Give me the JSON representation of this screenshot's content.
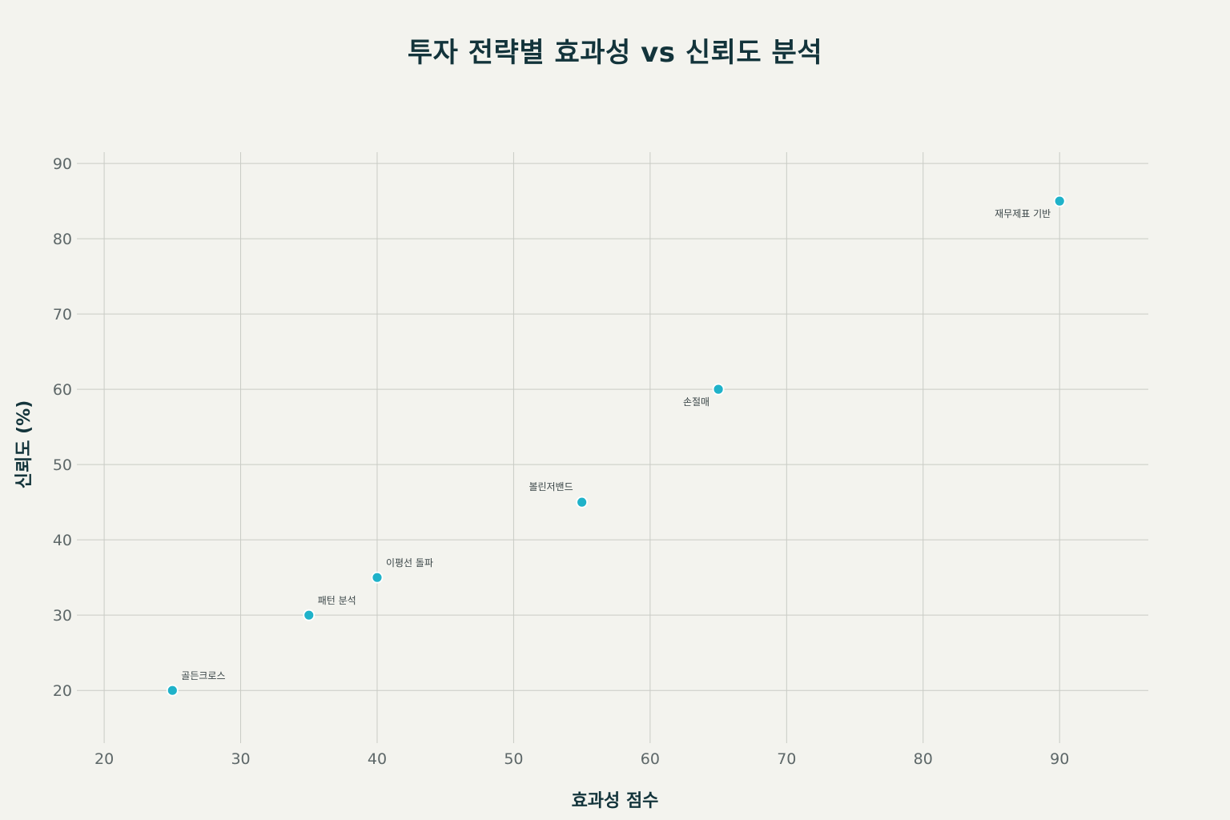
{
  "chart_data": {
    "type": "scatter",
    "title": "투자 전략별 효과성 vs 신뢰도 분석",
    "xlabel": "효과성 점수",
    "ylabel": "신뢰도 (%)",
    "xlim": [
      18,
      96.5
    ],
    "ylim": [
      13,
      91.5
    ],
    "xticks": [
      20,
      30,
      40,
      50,
      60,
      70,
      80,
      90
    ],
    "yticks": [
      20,
      30,
      40,
      50,
      60,
      70,
      80,
      90
    ],
    "grid": true,
    "legend": "none",
    "marker_color": "#1fb2c9",
    "points": [
      {
        "label": "골든크로스",
        "x": 25,
        "y": 20,
        "label_pos": "top-right"
      },
      {
        "label": "패턴 분석",
        "x": 35,
        "y": 30,
        "label_pos": "top-right"
      },
      {
        "label": "이평선 돌파",
        "x": 40,
        "y": 35,
        "label_pos": "top-right"
      },
      {
        "label": "볼린저밴드",
        "x": 55,
        "y": 45,
        "label_pos": "top-left"
      },
      {
        "label": "손절매",
        "x": 65,
        "y": 60,
        "label_pos": "bottom-left"
      },
      {
        "label": "재무제표 기반",
        "x": 90,
        "y": 85,
        "label_pos": "bottom-left"
      }
    ]
  }
}
